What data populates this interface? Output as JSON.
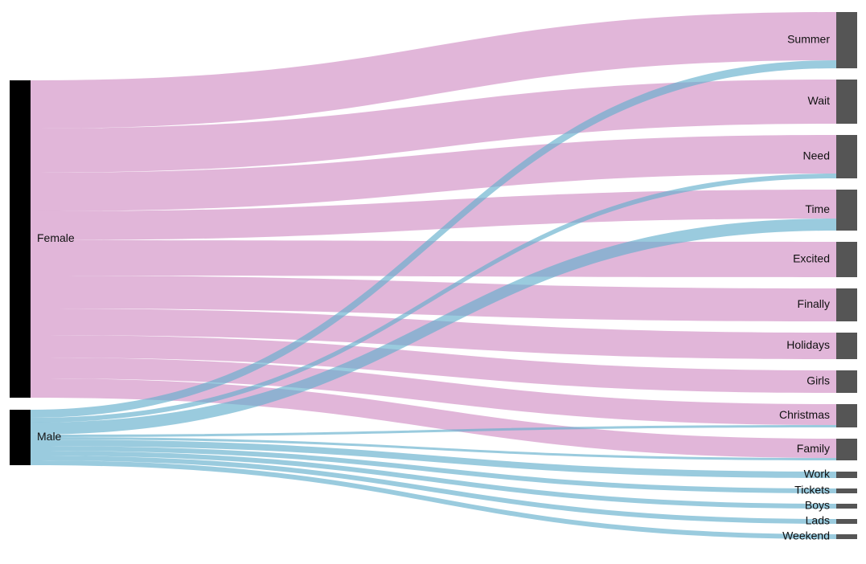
{
  "chart_data": {
    "type": "sankey",
    "sources": [
      {
        "name": "Female",
        "color": "#000000"
      },
      {
        "name": "Male",
        "color": "#000000"
      }
    ],
    "targets": [
      "Summer",
      "Wait",
      "Need",
      "Time",
      "Excited",
      "Finally",
      "Holidays",
      "Girls",
      "Christmas",
      "Family",
      "Work",
      "Tickets",
      "Boys",
      "Lads",
      "Weekend"
    ],
    "target_color": "#555555",
    "link_colors": {
      "Female": "#dfb2d7",
      "Male": "#64afcd"
    },
    "links": [
      {
        "source": "Female",
        "target": "Summer",
        "value": 60
      },
      {
        "source": "Male",
        "target": "Summer",
        "value": 10
      },
      {
        "source": "Female",
        "target": "Wait",
        "value": 55
      },
      {
        "source": "Female",
        "target": "Need",
        "value": 48
      },
      {
        "source": "Male",
        "target": "Need",
        "value": 6
      },
      {
        "source": "Female",
        "target": "Time",
        "value": 36
      },
      {
        "source": "Male",
        "target": "Time",
        "value": 15
      },
      {
        "source": "Female",
        "target": "Excited",
        "value": 44
      },
      {
        "source": "Female",
        "target": "Finally",
        "value": 41
      },
      {
        "source": "Female",
        "target": "Holidays",
        "value": 33
      },
      {
        "source": "Female",
        "target": "Girls",
        "value": 28
      },
      {
        "source": "Female",
        "target": "Christmas",
        "value": 26
      },
      {
        "source": "Male",
        "target": "Christmas",
        "value": 3
      },
      {
        "source": "Female",
        "target": "Family",
        "value": 24
      },
      {
        "source": "Male",
        "target": "Family",
        "value": 3
      },
      {
        "source": "Male",
        "target": "Work",
        "value": 8
      },
      {
        "source": "Male",
        "target": "Tickets",
        "value": 6
      },
      {
        "source": "Male",
        "target": "Boys",
        "value": 6
      },
      {
        "source": "Male",
        "target": "Lads",
        "value": 6
      },
      {
        "source": "Male",
        "target": "Weekend",
        "value": 6
      }
    ]
  }
}
